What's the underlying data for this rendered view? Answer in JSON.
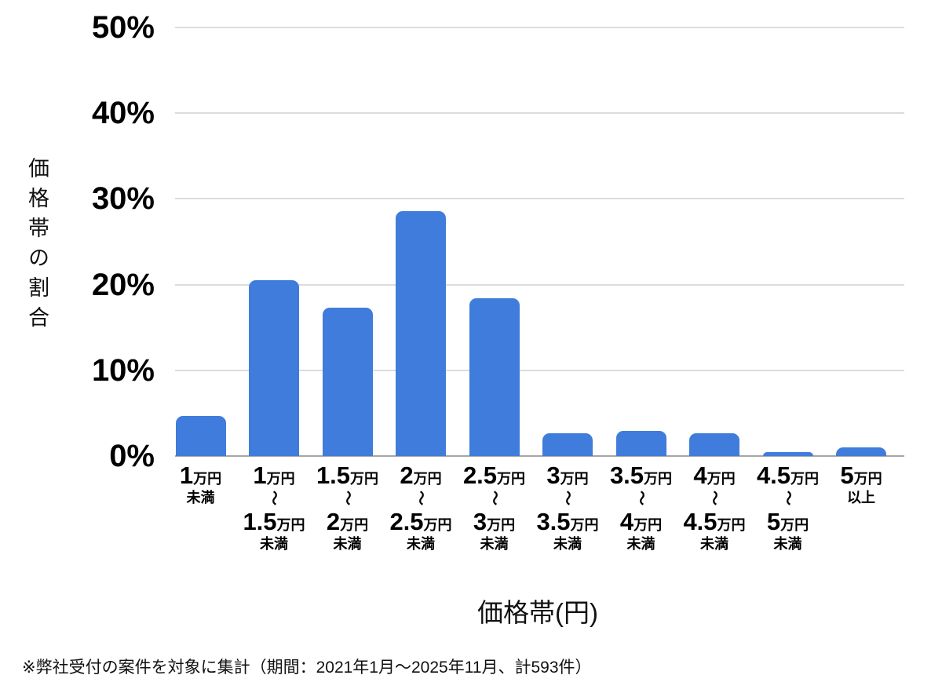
{
  "chart_data": {
    "type": "bar",
    "title": "",
    "xlabel": "価格帯(円)",
    "ylabel": "価格帯の割合",
    "ylim": [
      0,
      50
    ],
    "grid": true,
    "legend": "none",
    "bar_color": "#3f7cdb",
    "unit": "万円",
    "tilde": "〜",
    "y_ticks": [
      {
        "value": 0,
        "label": "0%"
      },
      {
        "value": 10,
        "label": "10%"
      },
      {
        "value": 20,
        "label": "20%"
      },
      {
        "value": 30,
        "label": "30%"
      },
      {
        "value": 40,
        "label": "40%"
      },
      {
        "value": 50,
        "label": "50%"
      }
    ],
    "categories": [
      {
        "from": "1",
        "to": "",
        "qualifier": "未満"
      },
      {
        "from": "1",
        "to": "1.5",
        "qualifier": "未満"
      },
      {
        "from": "1.5",
        "to": "2",
        "qualifier": "未満"
      },
      {
        "from": "2",
        "to": "2.5",
        "qualifier": "未満"
      },
      {
        "from": "2.5",
        "to": "3",
        "qualifier": "未満"
      },
      {
        "from": "3",
        "to": "3.5",
        "qualifier": "未満"
      },
      {
        "from": "3.5",
        "to": "4",
        "qualifier": "未満"
      },
      {
        "from": "4",
        "to": "4.5",
        "qualifier": "未満"
      },
      {
        "from": "4.5",
        "to": "5",
        "qualifier": "未満"
      },
      {
        "from": "5",
        "to": "",
        "qualifier": "以上"
      }
    ],
    "category_labels": [
      "1万円未満",
      "1万円〜1.5万円未満",
      "1.5万円〜2万円未満",
      "2万円〜2.5万円未満",
      "2.5万円〜3万円未満",
      "3万円〜3.5万円未満",
      "3.5万円〜4万円未満",
      "4万円〜4.5万円未満",
      "4.5万円〜5万円未満",
      "5万円以上"
    ],
    "values": [
      4.7,
      20.5,
      17.3,
      28.6,
      18.4,
      2.7,
      2.9,
      2.7,
      0.5,
      1.0
    ]
  },
  "footer": {
    "note": "※弊社受付の案件を対象に集計（期間：2021年1月～2025年11月、計593件）"
  }
}
